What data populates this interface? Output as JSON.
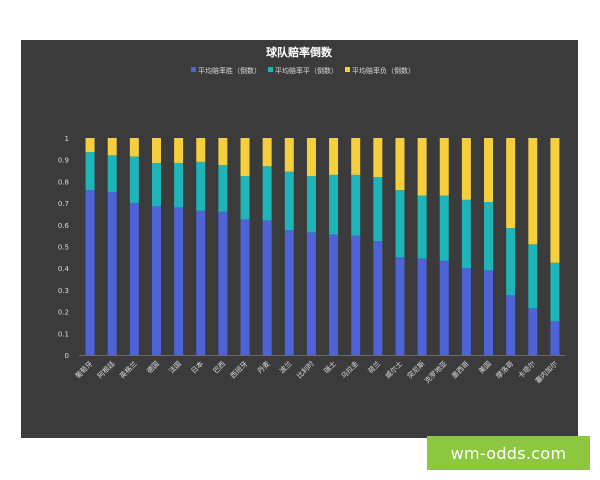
{
  "chart_data": {
    "type": "bar",
    "stacked": true,
    "title": "球队赔率倒数",
    "categories": [
      "葡萄牙",
      "阿根廷",
      "英格兰",
      "德国",
      "法国",
      "日本",
      "巴西",
      "西班牙",
      "丹麦",
      "波兰",
      "比利时",
      "瑞士",
      "乌拉圭",
      "荷兰",
      "威尔士",
      "突尼斯",
      "克罗地亚",
      "墨西哥",
      "美国",
      "摩洛哥",
      "卡塔尔",
      "塞内加尔"
    ],
    "series": [
      {
        "name": "平均赔率胜（倒数）",
        "color": "#4d63d6",
        "values": [
          0.76,
          0.75,
          0.7,
          0.685,
          0.68,
          0.665,
          0.66,
          0.625,
          0.62,
          0.575,
          0.565,
          0.555,
          0.55,
          0.525,
          0.45,
          0.445,
          0.435,
          0.4,
          0.39,
          0.275,
          0.215,
          0.155
        ]
      },
      {
        "name": "平均赔率平（倒数）",
        "color": "#1fb5b8",
        "values": [
          0.175,
          0.17,
          0.215,
          0.2,
          0.205,
          0.225,
          0.215,
          0.2,
          0.25,
          0.27,
          0.26,
          0.275,
          0.28,
          0.295,
          0.31,
          0.29,
          0.3,
          0.315,
          0.315,
          0.31,
          0.295,
          0.27
        ]
      },
      {
        "name": "平均赔率负（倒数）",
        "color": "#f6cf3e",
        "values": [
          0.065,
          0.08,
          0.085,
          0.115,
          0.115,
          0.11,
          0.125,
          0.175,
          0.13,
          0.155,
          0.175,
          0.17,
          0.17,
          0.18,
          0.24,
          0.265,
          0.265,
          0.285,
          0.295,
          0.415,
          0.49,
          0.575
        ]
      }
    ],
    "ylim": [
      0,
      1
    ],
    "yticks": [
      "0",
      "0.1",
      "0.2",
      "0.3",
      "0.4",
      "0.5",
      "0.6",
      "0.7",
      "0.8",
      "0.9",
      "1"
    ],
    "legend_position": "top",
    "grid": false,
    "colors": {
      "background": "#3b3b3b",
      "text": "#dddddd",
      "title": "#ffffff"
    }
  },
  "watermark": {
    "text": "wm-odds.com",
    "color": "#8dc63f"
  }
}
